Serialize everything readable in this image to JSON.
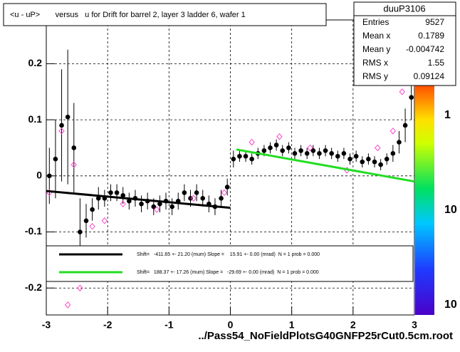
{
  "chart_data": {
    "type": "profile",
    "title": "<u - uP>       versus   u for Drift for barrel 2, layer 3 ladder 6, wafer 1",
    "x_axis_label": "../Pass54_NoFieldPlotsG40GNFP25rCut0.5cm.root",
    "xlim": [
      -3,
      3
    ],
    "ylim": [
      -0.248,
      0.278
    ],
    "xticks": [
      -3,
      -2,
      -1,
      0,
      1,
      2,
      3
    ],
    "yticks": [
      -0.2,
      -0.1,
      0,
      0.1,
      0.2
    ],
    "grid": true,
    "stats": {
      "title": "duuP3106",
      "rows": [
        [
          "Entries",
          "9527"
        ],
        [
          "Mean x",
          "0.1789"
        ],
        [
          "Mean y",
          "-0.004742"
        ],
        [
          "RMS x",
          "1.55"
        ],
        [
          "RMS y",
          "0.09124"
        ]
      ]
    },
    "palette_labels": [
      "1",
      "10",
      "10"
    ],
    "series": [
      {
        "color": "#000000",
        "x": [
          -2.95,
          -2.85,
          -2.75,
          -2.65,
          -2.55,
          -2.45,
          -2.35,
          -2.25,
          -2.15,
          -2.05,
          -1.95,
          -1.85,
          -1.75,
          -1.65,
          -1.55,
          -1.45,
          -1.35,
          -1.25,
          -1.15,
          -1.05,
          -0.95,
          -0.85,
          -0.75,
          -0.65,
          -0.55,
          -0.45,
          -0.35,
          -0.25,
          -0.15,
          -0.05,
          0.05,
          0.15,
          0.25,
          0.35,
          0.45,
          0.55,
          0.65,
          0.75,
          0.85,
          0.95,
          1.05,
          1.15,
          1.25,
          1.35,
          1.45,
          1.55,
          1.65,
          1.75,
          1.85,
          1.95,
          2.05,
          2.15,
          2.25,
          2.35,
          2.45,
          2.55,
          2.65,
          2.75,
          2.85,
          2.95
        ],
        "values": [
          0.0,
          0.03,
          0.09,
          0.105,
          0.05,
          -0.1,
          -0.08,
          -0.06,
          -0.04,
          -0.04,
          -0.03,
          -0.03,
          -0.035,
          -0.045,
          -0.04,
          -0.05,
          -0.045,
          -0.055,
          -0.05,
          -0.045,
          -0.055,
          -0.045,
          -0.03,
          -0.04,
          -0.03,
          -0.04,
          -0.05,
          -0.055,
          -0.04,
          -0.02,
          0.03,
          0.035,
          0.035,
          0.03,
          0.04,
          0.045,
          0.05,
          0.055,
          0.045,
          0.05,
          0.04,
          0.045,
          0.04,
          0.045,
          0.04,
          0.045,
          0.04,
          0.035,
          0.04,
          0.03,
          0.035,
          0.025,
          0.03,
          0.025,
          0.02,
          0.03,
          0.04,
          0.06,
          0.09,
          0.14
        ],
        "errors": [
          0.05,
          0.07,
          0.1,
          0.12,
          0.08,
          0.06,
          0.03,
          0.02,
          0.02,
          0.015,
          0.015,
          0.015,
          0.015,
          0.015,
          0.015,
          0.015,
          0.015,
          0.015,
          0.015,
          0.015,
          0.015,
          0.015,
          0.015,
          0.015,
          0.015,
          0.015,
          0.015,
          0.015,
          0.015,
          0.015,
          0.015,
          0.01,
          0.01,
          0.01,
          0.01,
          0.01,
          0.01,
          0.01,
          0.01,
          0.01,
          0.01,
          0.01,
          0.01,
          0.01,
          0.01,
          0.01,
          0.01,
          0.01,
          0.01,
          0.01,
          0.01,
          0.01,
          0.01,
          0.01,
          0.01,
          0.01,
          0.015,
          0.02,
          0.03,
          0.04
        ]
      },
      {
        "color": "#ff44cc",
        "x": [
          -2.95,
          -2.75,
          -2.65,
          -2.55,
          -2.45,
          -2.25,
          -2.05,
          -1.75,
          -1.2,
          -0.6,
          -0.1,
          0.35,
          0.8,
          1.3,
          1.9,
          2.4,
          2.65,
          2.8
        ],
        "values": [
          -0.03,
          0.08,
          -0.23,
          0.02,
          -0.2,
          -0.09,
          -0.08,
          -0.05,
          -0.06,
          -0.04,
          -0.03,
          0.06,
          0.07,
          0.05,
          0.01,
          0.05,
          0.08,
          0.15
        ]
      }
    ],
    "fits": [
      {
        "color": "#000000",
        "x": [
          -3,
          0
        ],
        "y": [
          -0.027,
          -0.057
        ],
        "label": "Shift=   -411.65 +- 21.20 (mum) Slope =    15.91 +- 0.00 (mrad)  N = 1 prob = 0.000"
      },
      {
        "color": "#22dd22",
        "x": [
          0.1,
          3
        ],
        "y": [
          0.047,
          -0.01
        ],
        "label": "Shift=   188.37 +- 17.26 (mum) Slope =   -29.69 +- 0.00 (mrad)  N = 1 prob = 0.000"
      }
    ]
  }
}
